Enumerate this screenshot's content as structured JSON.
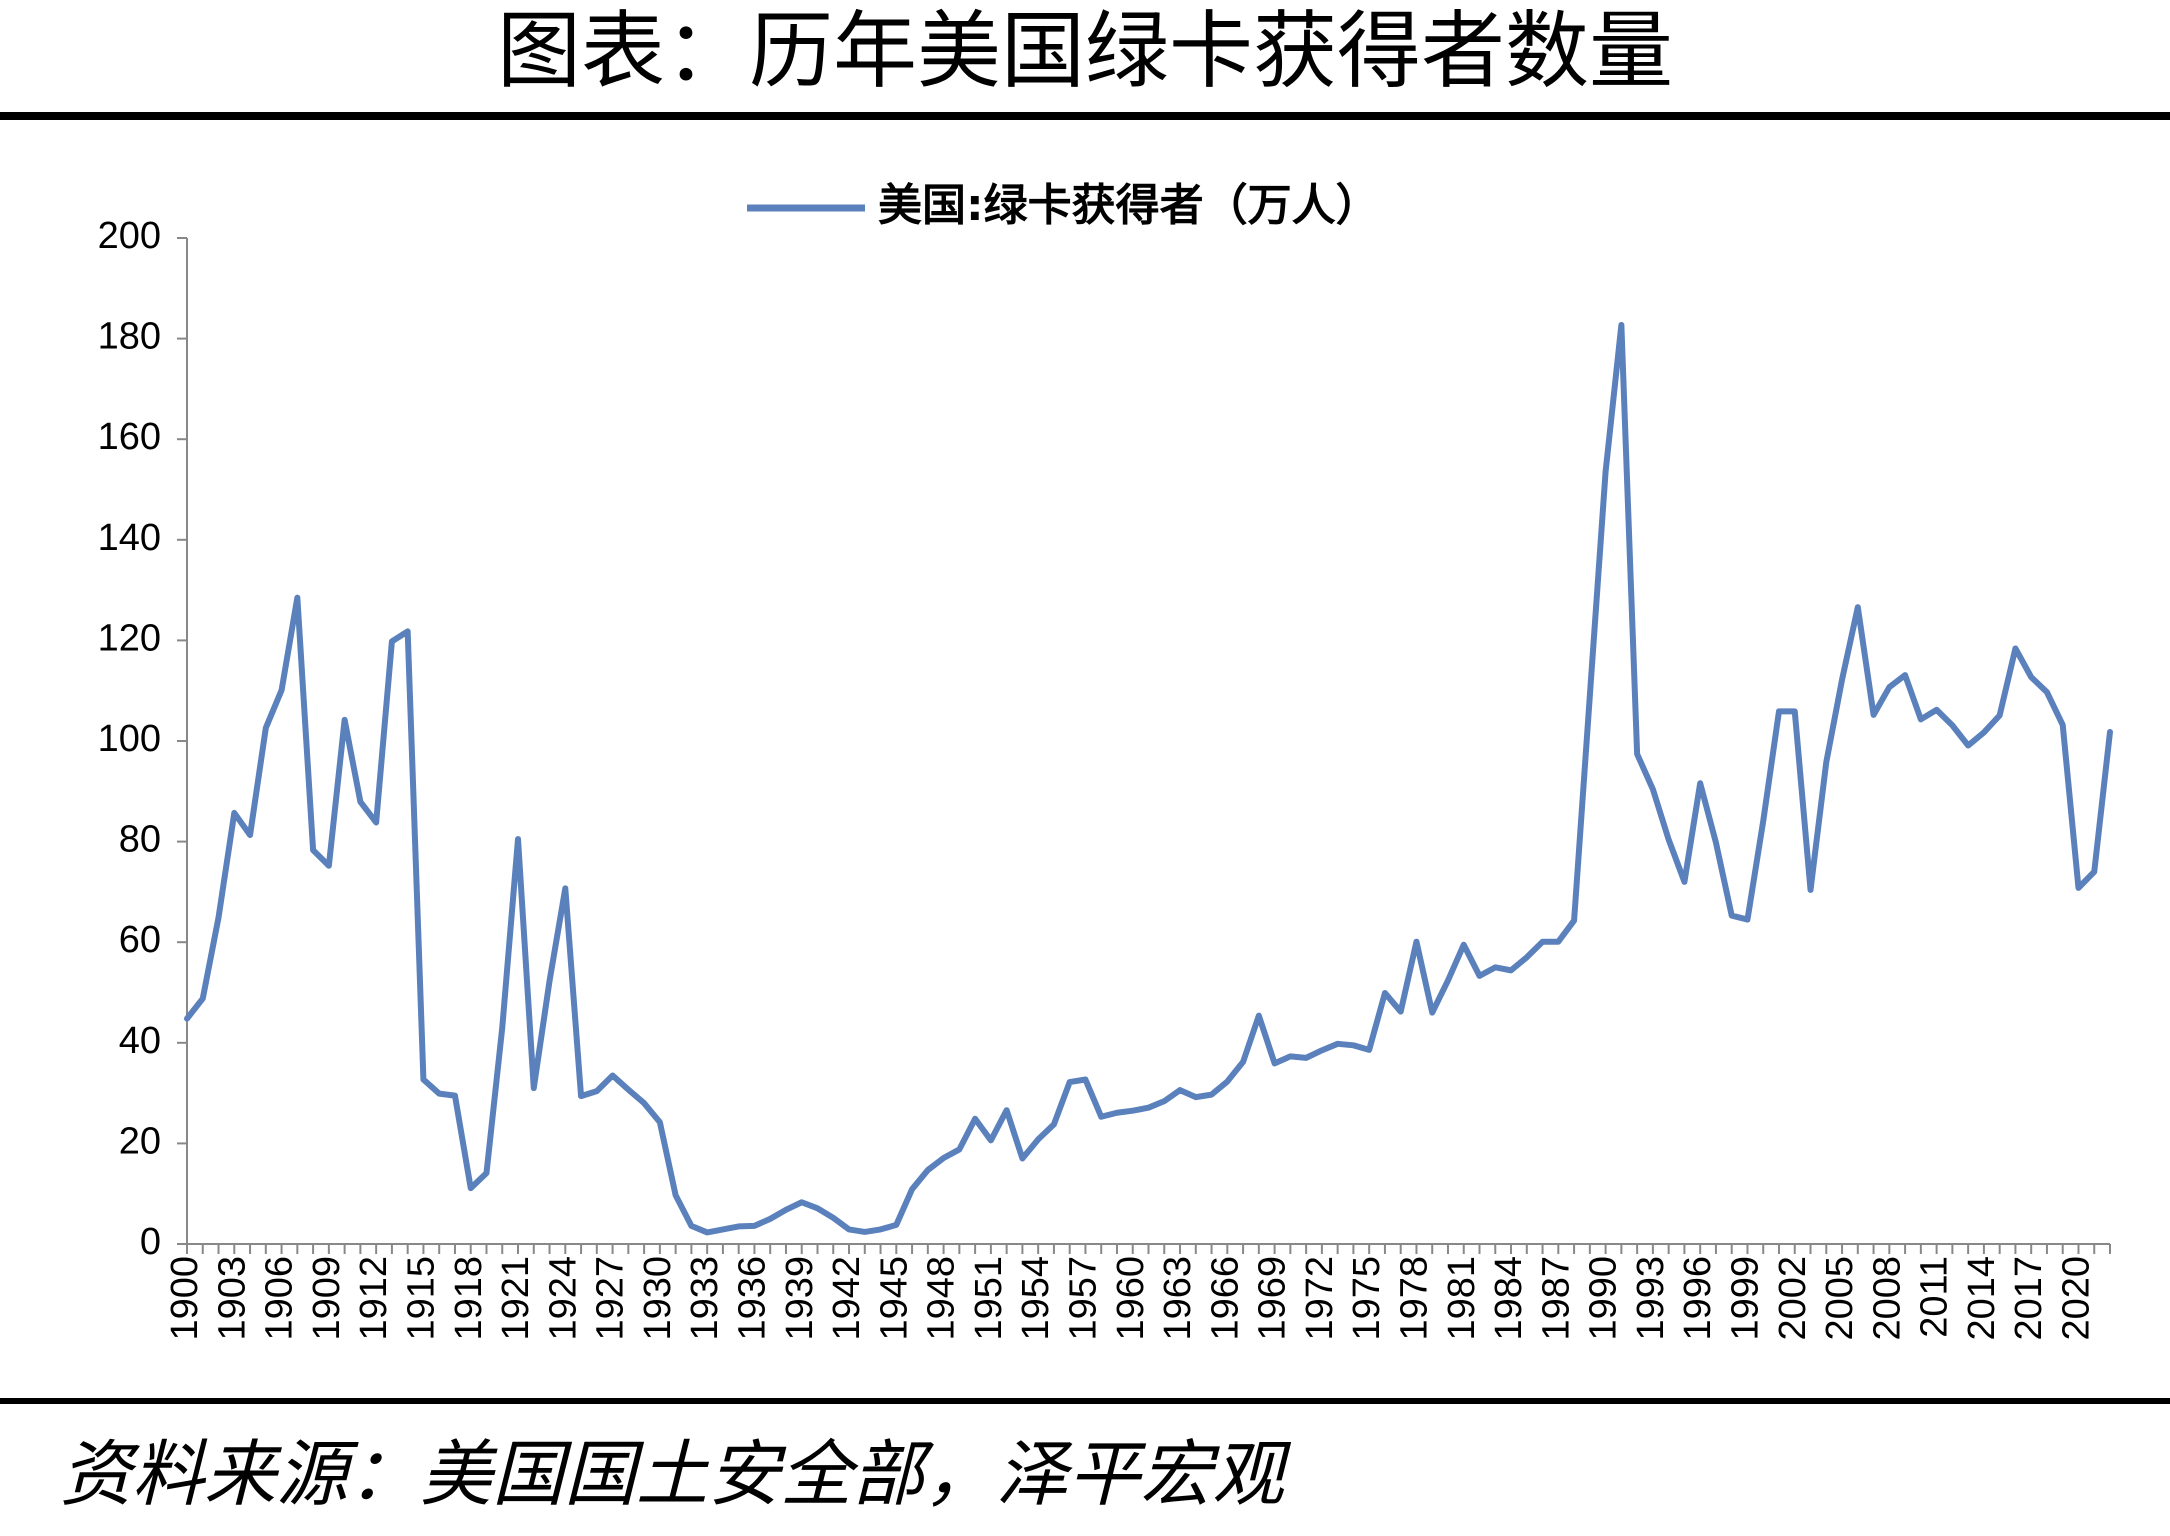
{
  "chart_data": {
    "type": "line",
    "title": "图表：历年美国绿卡获得者数量",
    "source": "资料来源：美国国土安全部，泽平宏观",
    "categories": [
      "1900",
      null,
      null,
      "1903",
      null,
      null,
      "1906",
      null,
      null,
      "1909",
      null,
      null,
      "1912",
      null,
      null,
      "1915",
      null,
      null,
      "1918",
      null,
      null,
      "1921",
      null,
      null,
      "1924",
      null,
      null,
      "1927",
      null,
      null,
      "1930",
      null,
      null,
      "1933",
      null,
      null,
      "1936",
      null,
      null,
      "1939",
      null,
      null,
      "1942",
      null,
      null,
      "1945",
      null,
      null,
      "1948",
      null,
      null,
      "1951",
      null,
      null,
      "1954",
      null,
      null,
      "1957",
      null,
      null,
      "1960",
      null,
      null,
      "1963",
      null,
      null,
      "1966",
      null,
      null,
      "1969",
      null,
      null,
      "1972",
      null,
      null,
      "1975",
      null,
      null,
      "1978",
      null,
      null,
      "1981",
      null,
      null,
      "1984",
      null,
      null,
      "1987",
      null,
      null,
      "1990",
      null,
      null,
      "1993",
      null,
      null,
      "1996",
      null,
      null,
      "1999",
      null,
      null,
      "2002",
      null,
      null,
      "2005",
      null,
      null,
      "2008",
      null,
      null,
      "2011",
      null,
      null,
      "2014",
      null,
      null,
      "2017",
      null,
      null,
      "2020",
      null,
      null
    ],
    "series": [
      {
        "name": "美国:绿卡获得者（万人）",
        "color": "#5b81bd",
        "values": [
          44.8,
          48.8,
          64.9,
          85.7,
          81.3,
          102.6,
          110.1,
          128.5,
          78.3,
          75.2,
          104.2,
          87.9,
          83.8,
          119.8,
          121.8,
          32.7,
          29.9,
          29.5,
          11.1,
          14.1,
          43.0,
          80.5,
          31.0,
          52.3,
          70.7,
          29.4,
          30.4,
          33.5,
          30.7,
          28.0,
          24.2,
          9.7,
          3.6,
          2.3,
          2.9,
          3.5,
          3.6,
          5.0,
          6.8,
          8.3,
          7.1,
          5.2,
          2.9,
          2.4,
          2.9,
          3.8,
          10.9,
          14.7,
          17.1,
          18.8,
          24.9,
          20.6,
          26.6,
          17.0,
          20.8,
          23.8,
          32.2,
          32.7,
          25.3,
          26.1,
          26.5,
          27.1,
          28.4,
          30.6,
          29.2,
          29.7,
          32.3,
          36.2,
          45.4,
          35.9,
          37.3,
          37.0,
          38.5,
          39.8,
          39.5,
          38.6,
          49.9,
          46.2,
          60.1,
          46.0,
          52.4,
          59.5,
          53.3,
          55.0,
          54.4,
          57.0,
          60.1,
          60.1,
          64.3,
          109.0,
          153.6,
          182.7,
          97.4,
          90.4,
          80.4,
          72.0,
          91.6,
          79.8,
          65.3,
          64.5,
          84.1,
          105.9,
          105.9,
          70.4,
          95.8,
          112.2,
          126.6,
          105.2,
          110.7,
          113.1,
          104.3,
          106.2,
          103.1,
          99.1,
          101.7,
          105.1,
          118.4,
          112.7,
          109.7,
          103.2,
          70.8,
          74.0,
          101.8
        ]
      }
    ],
    "ylim": [
      0,
      200
    ],
    "yticks": [
      0,
      20,
      40,
      60,
      80,
      100,
      120,
      140,
      160,
      180,
      200
    ]
  }
}
